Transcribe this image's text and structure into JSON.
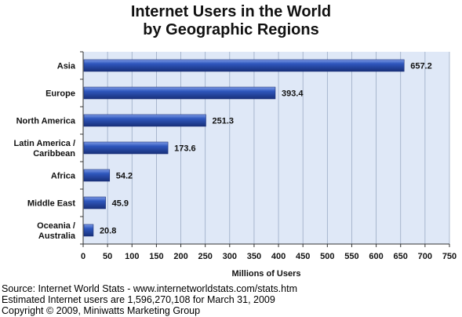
{
  "chart_data": {
    "type": "bar",
    "orientation": "horizontal",
    "title": [
      "Internet Users in the World",
      "by Geographic Regions"
    ],
    "categories": [
      [
        "Asia"
      ],
      [
        "Europe"
      ],
      [
        "North America"
      ],
      [
        "Latin America /",
        "Caribbean"
      ],
      [
        "Africa"
      ],
      [
        "Middle East"
      ],
      [
        "Oceania  /",
        "Australia"
      ]
    ],
    "values": [
      657.2,
      393.4,
      251.3,
      173.6,
      54.2,
      45.9,
      20.8
    ],
    "value_labels": [
      "657.2",
      "393.4",
      "251.3",
      "173.6",
      "54.2",
      "45.9",
      "20.8"
    ],
    "xlabel": "Millions of Users",
    "ylabel": "",
    "xlim": [
      0,
      750
    ],
    "xticks": [
      0,
      50,
      100,
      150,
      200,
      250,
      300,
      350,
      400,
      450,
      500,
      550,
      600,
      650,
      700,
      750
    ],
    "grid": true,
    "legend": "none",
    "colors": {
      "bar": "#2a4fb0",
      "bar_light": "#6f8fe0",
      "bar_dark": "#1a2f78",
      "plot_background": "#dfe8f7",
      "grid": "#9aaac4",
      "axis": "#333333"
    }
  },
  "footnotes": [
    "Source: Internet World Stats - www.internetworldstats.com/stats.htm",
    "Estimated Internet users are 1,596,270,108 for March 31, 2009",
    "Copyright © 2009, Miniwatts Marketing Group"
  ]
}
